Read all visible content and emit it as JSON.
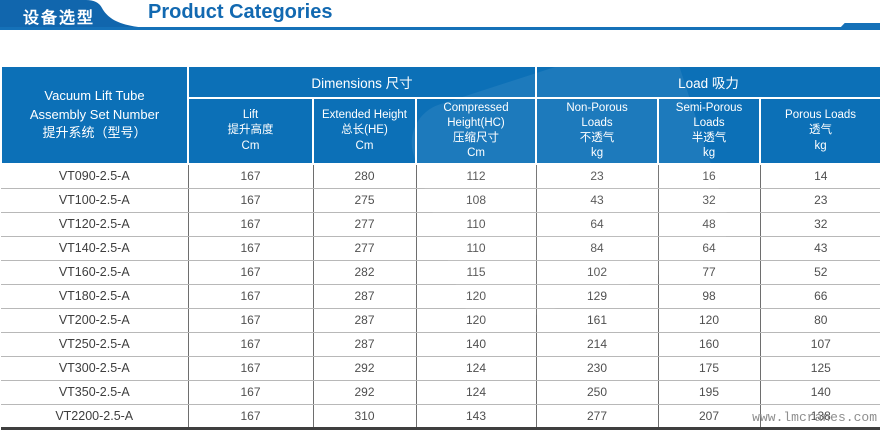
{
  "header": {
    "tab_label": "设备选型",
    "title": "Product Categories"
  },
  "table": {
    "model_header_lines": [
      "Vacuum Lift Tube",
      "Assembly Set Number",
      "提升系统（型号）"
    ],
    "groups": [
      {
        "label": "Dimensions 尺寸"
      },
      {
        "label": "Load 吸力"
      }
    ],
    "sub_columns": [
      {
        "lines": [
          "Lift",
          "提升高度",
          "Cm"
        ]
      },
      {
        "lines": [
          "Extended Height",
          "总长(HE)",
          "Cm"
        ]
      },
      {
        "lines": [
          "Compressed",
          "Height(HC)",
          "压缩尺寸",
          "Cm"
        ]
      },
      {
        "lines": [
          "Non-Porous",
          "Loads",
          "不透气",
          "kg"
        ]
      },
      {
        "lines": [
          "Semi-Porous",
          "Loads",
          "半透气",
          "kg"
        ]
      },
      {
        "lines": [
          "Porous Loads",
          "透气",
          "kg"
        ]
      }
    ],
    "rows": [
      {
        "model": "VT090-2.5-A",
        "values": [
          167,
          280,
          112,
          23,
          16,
          14
        ]
      },
      {
        "model": "VT100-2.5-A",
        "values": [
          167,
          275,
          108,
          43,
          32,
          23
        ]
      },
      {
        "model": "VT120-2.5-A",
        "values": [
          167,
          277,
          110,
          64,
          48,
          32
        ]
      },
      {
        "model": "VT140-2.5-A",
        "values": [
          167,
          277,
          110,
          84,
          64,
          43
        ]
      },
      {
        "model": "VT160-2.5-A",
        "values": [
          167,
          282,
          115,
          102,
          77,
          52
        ]
      },
      {
        "model": "VT180-2.5-A",
        "values": [
          167,
          287,
          120,
          129,
          98,
          66
        ]
      },
      {
        "model": "VT200-2.5-A",
        "values": [
          167,
          287,
          120,
          161,
          120,
          80
        ]
      },
      {
        "model": "VT250-2.5-A",
        "values": [
          167,
          287,
          140,
          214,
          160,
          107
        ]
      },
      {
        "model": "VT300-2.5-A",
        "values": [
          167,
          292,
          124,
          230,
          175,
          125
        ]
      },
      {
        "model": "VT350-2.5-A",
        "values": [
          167,
          292,
          124,
          250,
          195,
          140
        ]
      },
      {
        "model": "VT2200-2.5-A",
        "values": [
          167,
          310,
          143,
          277,
          207,
          138
        ]
      }
    ]
  },
  "watermark": "www.lmcranes.com",
  "colors": {
    "tab_blue": "#1166ad",
    "line_blue": "#1571b8",
    "header_blue": "#0c70b7",
    "title_text": "#1269b1"
  }
}
